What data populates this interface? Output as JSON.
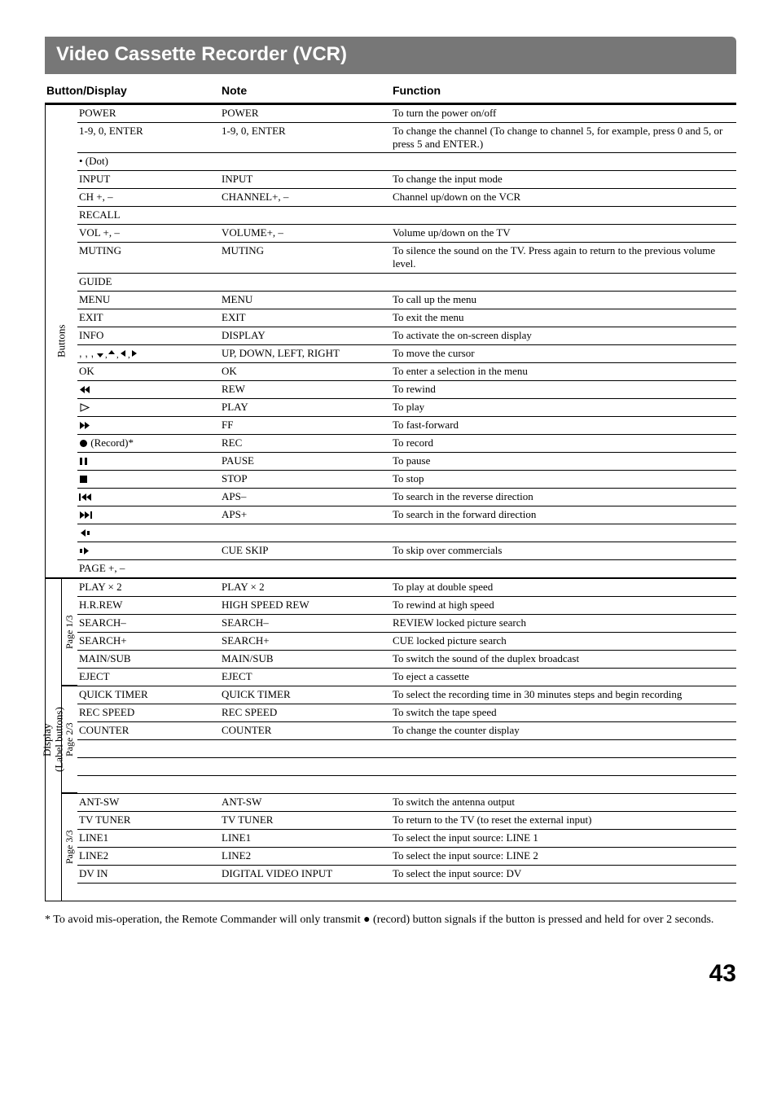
{
  "title": "Video Cassette Recorder (VCR)",
  "headers": {
    "button": "Button/Display",
    "note": "Note",
    "function": "Function"
  },
  "labels": {
    "vbuttons": "Buttons",
    "vdisplay": "Display\n(Label buttons)",
    "page1": "Page 1/3",
    "page2": "Page 2/3",
    "page3": "Page 3/3"
  },
  "buttons_rows": [
    {
      "btn": "POWER",
      "note": "POWER",
      "fn": "To turn the power on/off"
    },
    {
      "btn": "1-9, 0, ENTER",
      "note": "1-9, 0, ENTER",
      "fn": "To change the channel (To change to channel 5, for example, press 0 and 5, or press 5 and ENTER.)"
    },
    {
      "btn": "• (Dot)",
      "note": "",
      "fn": ""
    },
    {
      "btn": "INPUT",
      "note": "INPUT",
      "fn": "To change the input mode"
    },
    {
      "btn": "CH +, –",
      "note": "CHANNEL+, –",
      "fn": "Channel up/down on the VCR"
    },
    {
      "btn": "RECALL",
      "note": "",
      "fn": ""
    },
    {
      "btn": "VOL +, –",
      "note": "VOLUME+, –",
      "fn": "Volume up/down on the TV"
    },
    {
      "btn": "MUTING",
      "note": "MUTING",
      "fn": "To silence the sound on the TV. Press again to return to the previous volume level."
    },
    {
      "btn": "GUIDE",
      "note": "",
      "fn": ""
    },
    {
      "btn": "MENU",
      "note": "MENU",
      "fn": "To call up the menu"
    },
    {
      "btn": "EXIT",
      "note": "EXIT",
      "fn": "To exit the menu"
    },
    {
      "btn": "INFO",
      "note": "DISPLAY",
      "fn": "To activate the on-screen display"
    },
    {
      "btn_icon": "arrows",
      "note": "UP, DOWN, LEFT, RIGHT",
      "fn": "To move the cursor"
    },
    {
      "btn": "OK",
      "note": "OK",
      "fn": "To enter a selection in the menu"
    },
    {
      "btn_icon": "rew",
      "note": "REW",
      "fn": "To rewind"
    },
    {
      "btn_icon": "play",
      "note": "PLAY",
      "fn": "To play"
    },
    {
      "btn_icon": "ff",
      "note": "FF",
      "fn": "To fast-forward"
    },
    {
      "btn_icon": "rec",
      "btn_suffix": " (Record)*",
      "note": "REC",
      "fn": "To record"
    },
    {
      "btn_icon": "pause",
      "note": "PAUSE",
      "fn": "To pause"
    },
    {
      "btn_icon": "stop",
      "note": "STOP",
      "fn": "To stop"
    },
    {
      "btn_icon": "prev",
      "note": "APS–",
      "fn": "To search in the reverse direction"
    },
    {
      "btn_icon": "next",
      "note": "APS+",
      "fn": "To search in the forward direction"
    },
    {
      "btn_icon": "stepback",
      "note": "",
      "fn": ""
    },
    {
      "btn_icon": "stepfwd",
      "note": "CUE SKIP",
      "fn": "To skip over commercials"
    },
    {
      "btn": "PAGE +, –",
      "note": "",
      "fn": ""
    }
  ],
  "page1_rows": [
    {
      "btn": "PLAY × 2",
      "note": "PLAY × 2",
      "fn": "To play at double speed"
    },
    {
      "btn": "H.R.REW",
      "note": "HIGH SPEED REW",
      "fn": "To rewind at high speed"
    },
    {
      "btn": "SEARCH–",
      "note": "SEARCH–",
      "fn": "REVIEW locked picture search"
    },
    {
      "btn": "SEARCH+",
      "note": "SEARCH+",
      "fn": "CUE locked picture search"
    },
    {
      "btn": "MAIN/SUB",
      "note": "MAIN/SUB",
      "fn": "To switch the sound of the duplex broadcast"
    },
    {
      "btn": "EJECT",
      "note": "EJECT",
      "fn": "To eject a cassette"
    }
  ],
  "page2_rows": [
    {
      "btn": "QUICK TIMER",
      "note": "QUICK TIMER",
      "fn": "To select the recording time in 30 minutes steps and begin recording"
    },
    {
      "btn": "REC SPEED",
      "note": "REC SPEED",
      "fn": "To switch the tape speed"
    },
    {
      "btn": "COUNTER",
      "note": "COUNTER",
      "fn": "To change the counter display"
    },
    {
      "btn": "",
      "note": "",
      "fn": ""
    },
    {
      "btn": "",
      "note": "",
      "fn": ""
    },
    {
      "btn": "",
      "note": "",
      "fn": ""
    }
  ],
  "page3_rows": [
    {
      "btn": "ANT-SW",
      "note": "ANT-SW",
      "fn": "To switch the antenna output"
    },
    {
      "btn": "TV TUNER",
      "note": "TV TUNER",
      "fn": "To return to the TV (to reset the external input)"
    },
    {
      "btn": "LINE1",
      "note": "LINE1",
      "fn": "To select the input source: LINE 1"
    },
    {
      "btn": "LINE2",
      "note": "LINE2",
      "fn": "To select the input source: LINE 2"
    },
    {
      "btn": "DV IN",
      "note": "DIGITAL VIDEO INPUT",
      "fn": "To select the input source: DV"
    },
    {
      "btn": "",
      "note": "",
      "fn": ""
    }
  ],
  "footnote": "* To avoid mis-operation, the Remote Commander will only transmit ● (record) button signals if the button is pressed and held for over 2 seconds.",
  "page_number": "43"
}
